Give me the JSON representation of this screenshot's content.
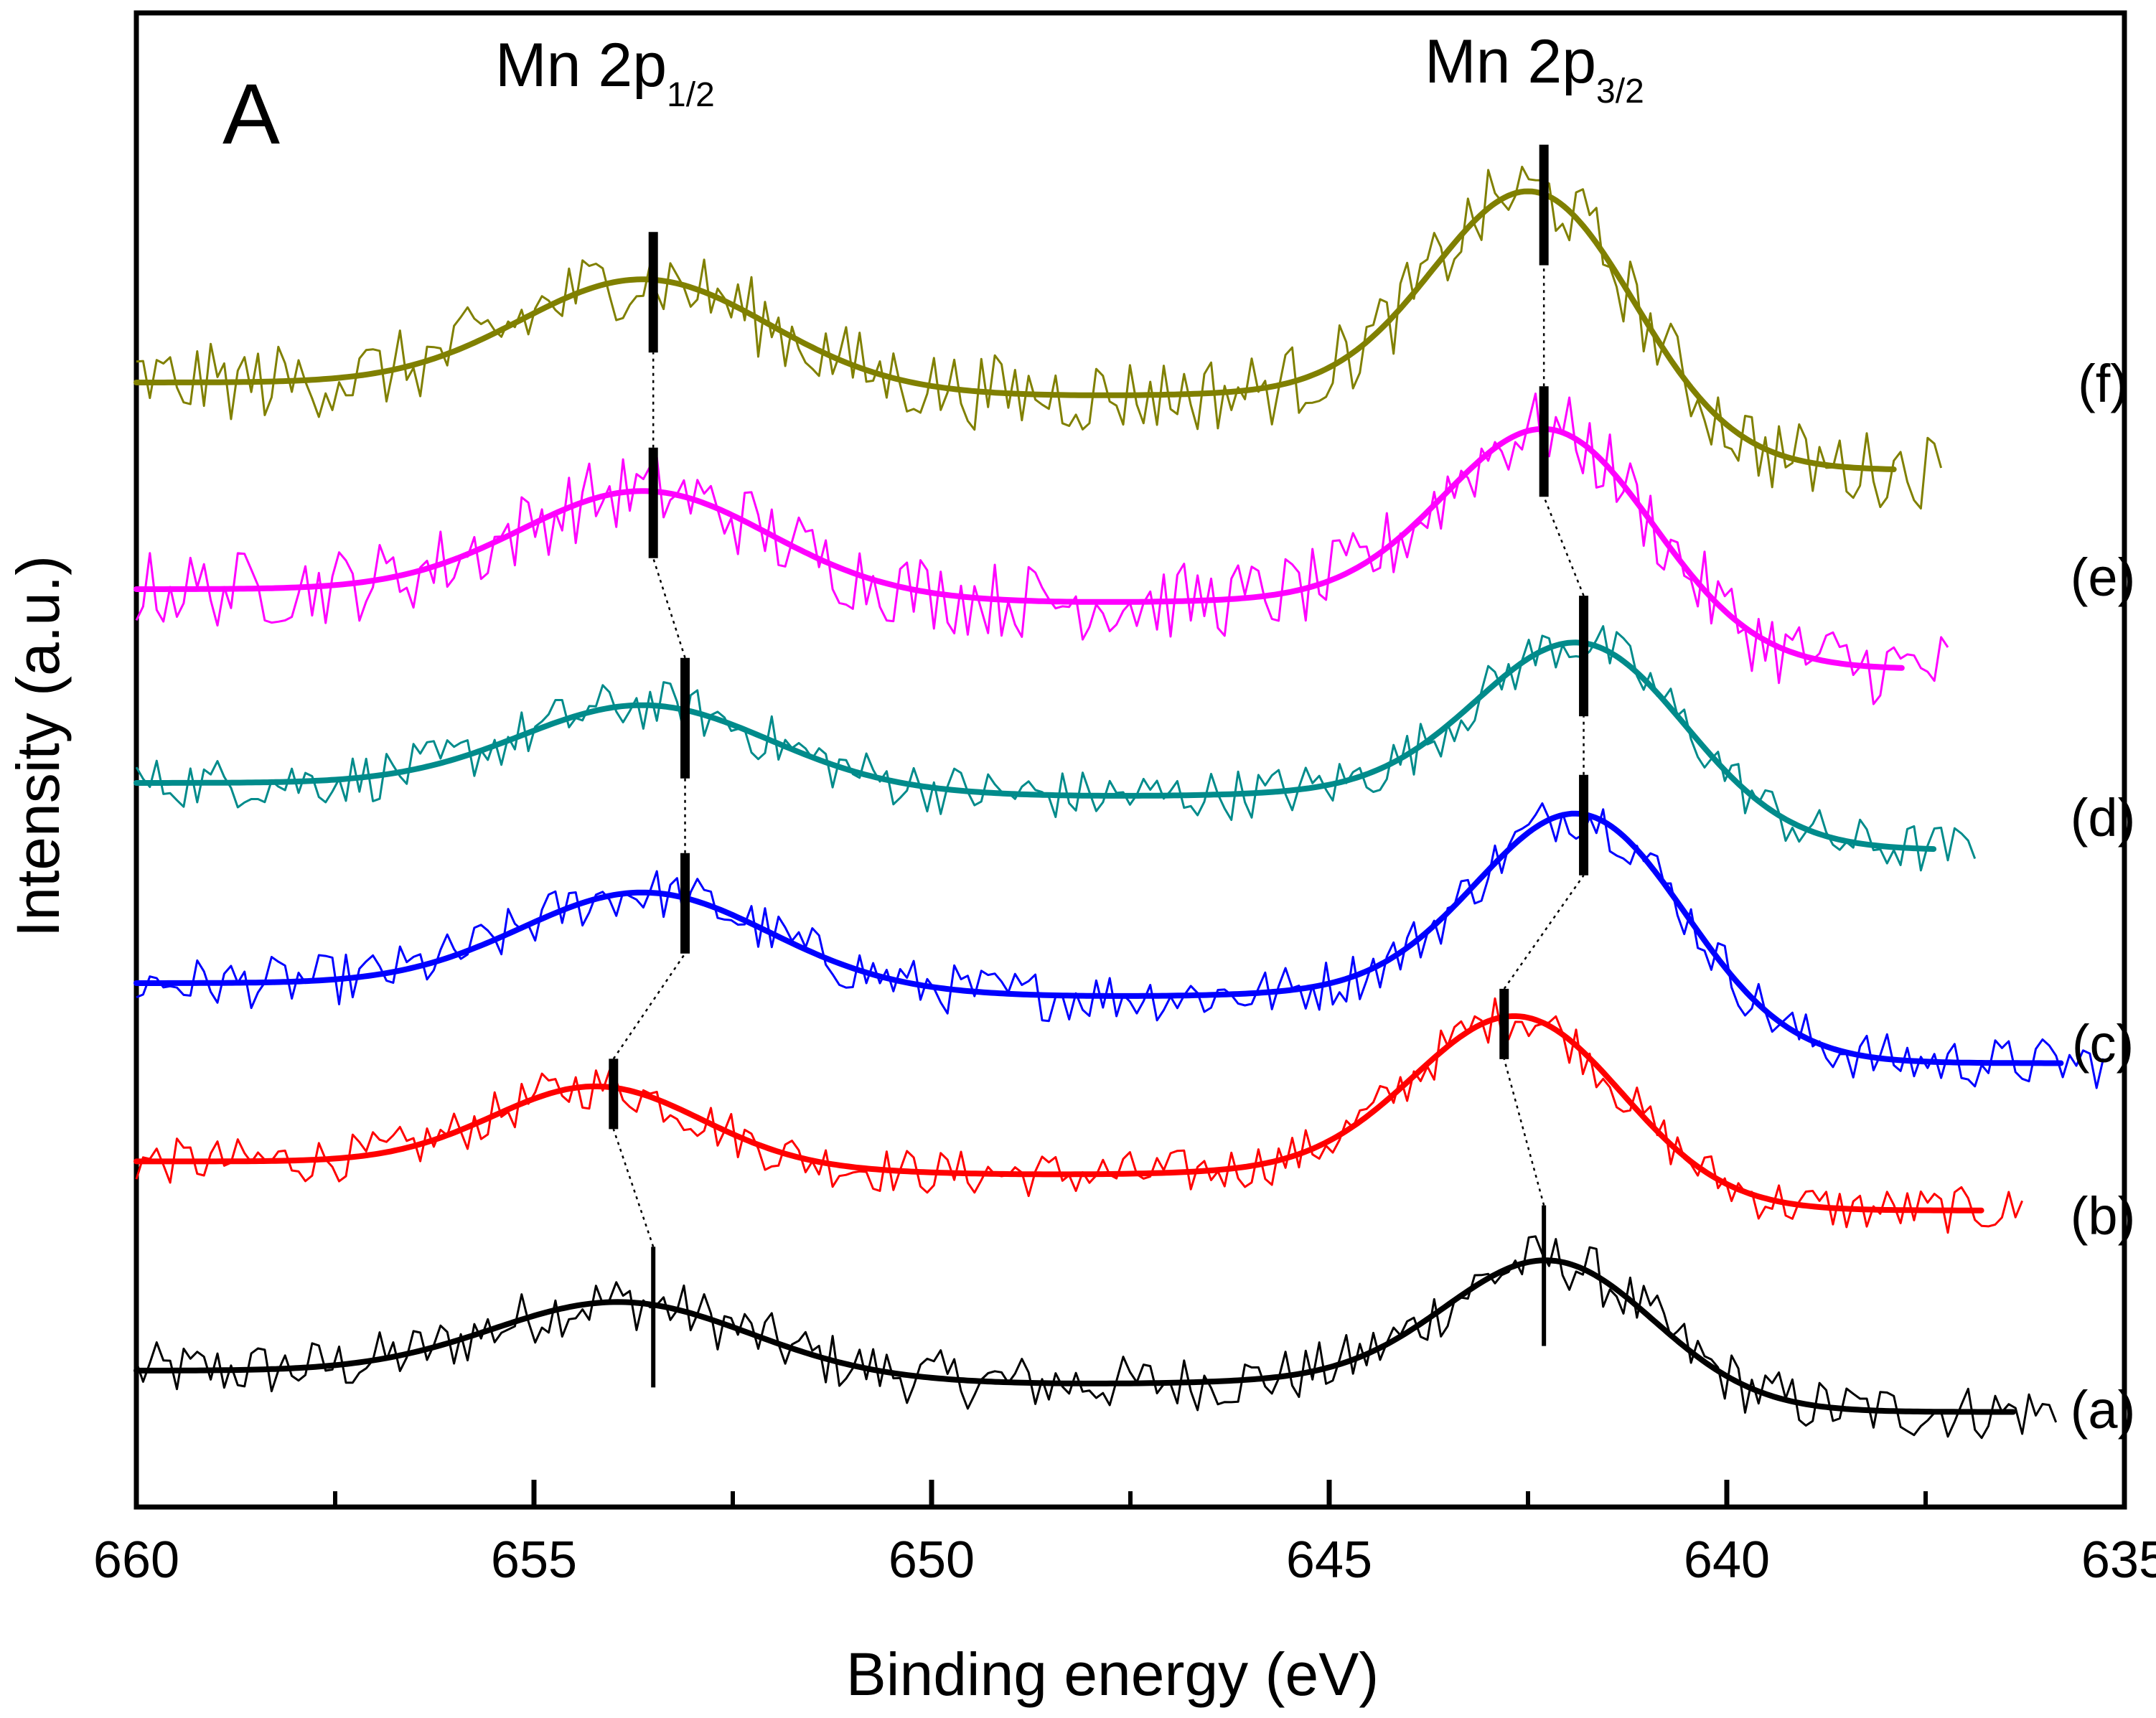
{
  "chart_data": {
    "type": "line",
    "title": "",
    "panel_label": "A",
    "xlabel": "Binding energy (eV)",
    "ylabel": "Intensity (a.u.)",
    "xlim": [
      660,
      635
    ],
    "x_reversed": true,
    "x_ticks": [
      660,
      655,
      650,
      645,
      640,
      635
    ],
    "x_tick_labels": [
      "660",
      "655",
      "650",
      "645",
      "640",
      "635"
    ],
    "y_ticks_shown": false,
    "annotations": [
      {
        "main": "Mn 2p",
        "sub": "1/2",
        "x": 653.6
      },
      {
        "main": "Mn 2p",
        "sub": "3/2",
        "x": 642.3
      }
    ],
    "series": [
      {
        "name": "(a)",
        "color": "#000000",
        "x_start": 660,
        "x_end": 635.8,
        "baseline": 0.0,
        "peaks": [
          {
            "x": 653.9,
            "amp": 0.55,
            "w": 1.6
          },
          {
            "x": 642.2,
            "amp": 0.92,
            "w": 1.3
          }
        ],
        "end_offset": -0.32,
        "noise": 0.22,
        "markers": [
          653.5,
          642.3
        ]
      },
      {
        "name": "(b)",
        "color": "#ff0000",
        "x_start": 660,
        "x_end": 636.2,
        "baseline": 1.62,
        "peaks": [
          {
            "x": 654.2,
            "amp": 0.6,
            "w": 1.3
          },
          {
            "x": 642.6,
            "amp": 1.2,
            "w": 1.3
          }
        ],
        "end_offset": -0.38,
        "noise": 0.18,
        "markers": [
          654.0,
          642.8
        ]
      },
      {
        "name": "(c)",
        "color": "#0000ff",
        "x_start": 660,
        "x_end": 635.2,
        "baseline": 3.0,
        "peaks": [
          {
            "x": 653.6,
            "amp": 0.72,
            "w": 1.55
          },
          {
            "x": 641.8,
            "amp": 1.42,
            "w": 1.3
          }
        ],
        "end_offset": -0.62,
        "noise": 0.2,
        "markers": [
          653.1,
          641.8
        ]
      },
      {
        "name": "(d)",
        "color": "#008b8b",
        "x_start": 660,
        "x_end": 636.8,
        "baseline": 4.55,
        "peaks": [
          {
            "x": 653.6,
            "amp": 0.62,
            "w": 1.55
          },
          {
            "x": 641.8,
            "amp": 1.18,
            "w": 1.3
          }
        ],
        "end_offset": -0.52,
        "noise": 0.2,
        "markers": [
          653.1,
          641.8
        ]
      },
      {
        "name": "(e)",
        "color": "#ff00ff",
        "x_start": 660,
        "x_end": 637.2,
        "baseline": 6.05,
        "peaks": [
          {
            "x": 653.6,
            "amp": 0.78,
            "w": 1.55
          },
          {
            "x": 642.2,
            "amp": 1.35,
            "w": 1.3
          }
        ],
        "end_offset": -0.62,
        "noise": 0.3,
        "markers": [
          653.5,
          642.3
        ]
      },
      {
        "name": "(f)",
        "color": "#808000",
        "x_start": 660,
        "x_end": 637.3,
        "baseline": 7.65,
        "peaks": [
          {
            "x": 653.6,
            "amp": 0.82,
            "w": 1.55
          },
          {
            "x": 642.4,
            "amp": 1.6,
            "w": 1.25
          }
        ],
        "end_offset": -0.68,
        "noise": 0.3,
        "markers": [
          653.5,
          642.3
        ]
      }
    ]
  }
}
